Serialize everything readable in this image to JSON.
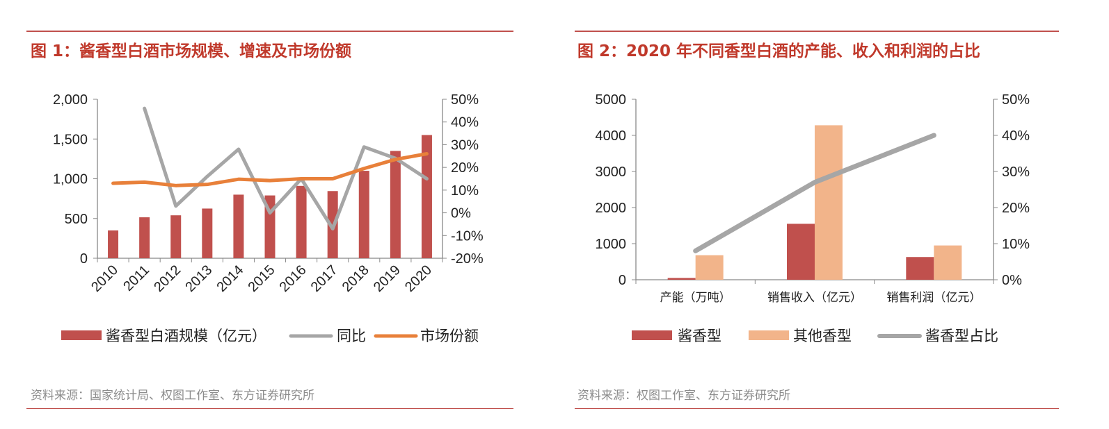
{
  "figure1": {
    "title": "图 1：酱香型白酒市场规模、增速及市场份额",
    "source": "资料来源：国家统计局、权图工作室、东方证券研究所",
    "colors": {
      "bar": "#c0504d",
      "yoy": "#a6a6a6",
      "share": "#e8803a"
    },
    "chart_data": {
      "type": "bar",
      "categories": [
        "2010",
        "2011",
        "2012",
        "2013",
        "2014",
        "2015",
        "2016",
        "2017",
        "2018",
        "2019",
        "2020"
      ],
      "left_axis": {
        "ylim": [
          0,
          2000
        ],
        "ticks": [
          "2,000",
          "1,500",
          "1,000",
          "500",
          "0"
        ],
        "tick_values": [
          2000,
          1500,
          1000,
          500,
          0
        ]
      },
      "right_axis": {
        "ylim": [
          -20,
          50
        ],
        "ticks": [
          "50%",
          "40%",
          "30%",
          "20%",
          "10%",
          "0%",
          "-10%",
          "-20%"
        ],
        "tick_values": [
          50,
          40,
          30,
          20,
          10,
          0,
          -10,
          -20
        ]
      },
      "series": [
        {
          "name": "酱香型白酒规模（亿元）",
          "type": "bar",
          "axis": "left",
          "values": [
            350,
            515,
            540,
            625,
            800,
            790,
            910,
            845,
            1100,
            1350,
            1550
          ]
        },
        {
          "name": "同比",
          "type": "line",
          "axis": "right",
          "values": [
            null,
            46,
            3,
            16,
            28,
            0,
            15,
            -7,
            29,
            24,
            15
          ]
        },
        {
          "name": "市场份额",
          "type": "line",
          "axis": "right",
          "values": [
            13,
            13.5,
            12,
            12.5,
            14.8,
            14.2,
            15,
            15,
            19.5,
            23.5,
            26
          ]
        }
      ],
      "legend_position": "bottom"
    }
  },
  "figure2": {
    "title": "图 2：2020 年不同香型白酒的产能、收入和利润的占比",
    "source": "资料来源：权图工作室、东方证券研究所",
    "colors": {
      "jiang": "#c0504d",
      "other": "#f2b48a",
      "ratio": "#a6a6a6"
    },
    "chart_data": {
      "type": "bar",
      "categories": [
        "产能（万吨）",
        "销售收入（亿元）",
        "销售利润（亿元）"
      ],
      "left_axis": {
        "ylim": [
          0,
          5000
        ],
        "ticks": [
          "5000",
          "4000",
          "3000",
          "2000",
          "1000",
          "0"
        ],
        "tick_values": [
          5000,
          4000,
          3000,
          2000,
          1000,
          0
        ]
      },
      "right_axis": {
        "ylim": [
          0,
          50
        ],
        "ticks": [
          "50%",
          "40%",
          "30%",
          "20%",
          "10%",
          "0%"
        ],
        "tick_values": [
          50,
          40,
          30,
          20,
          10,
          0
        ]
      },
      "series": [
        {
          "name": "酱香型",
          "type": "bar",
          "axis": "left",
          "values": [
            50,
            1550,
            630
          ]
        },
        {
          "name": "其他香型",
          "type": "bar",
          "axis": "left",
          "values": [
            680,
            4280,
            950
          ]
        },
        {
          "name": "酱香型占比",
          "type": "line",
          "axis": "right",
          "values": [
            8,
            27,
            40
          ]
        }
      ],
      "legend_position": "bottom"
    }
  }
}
